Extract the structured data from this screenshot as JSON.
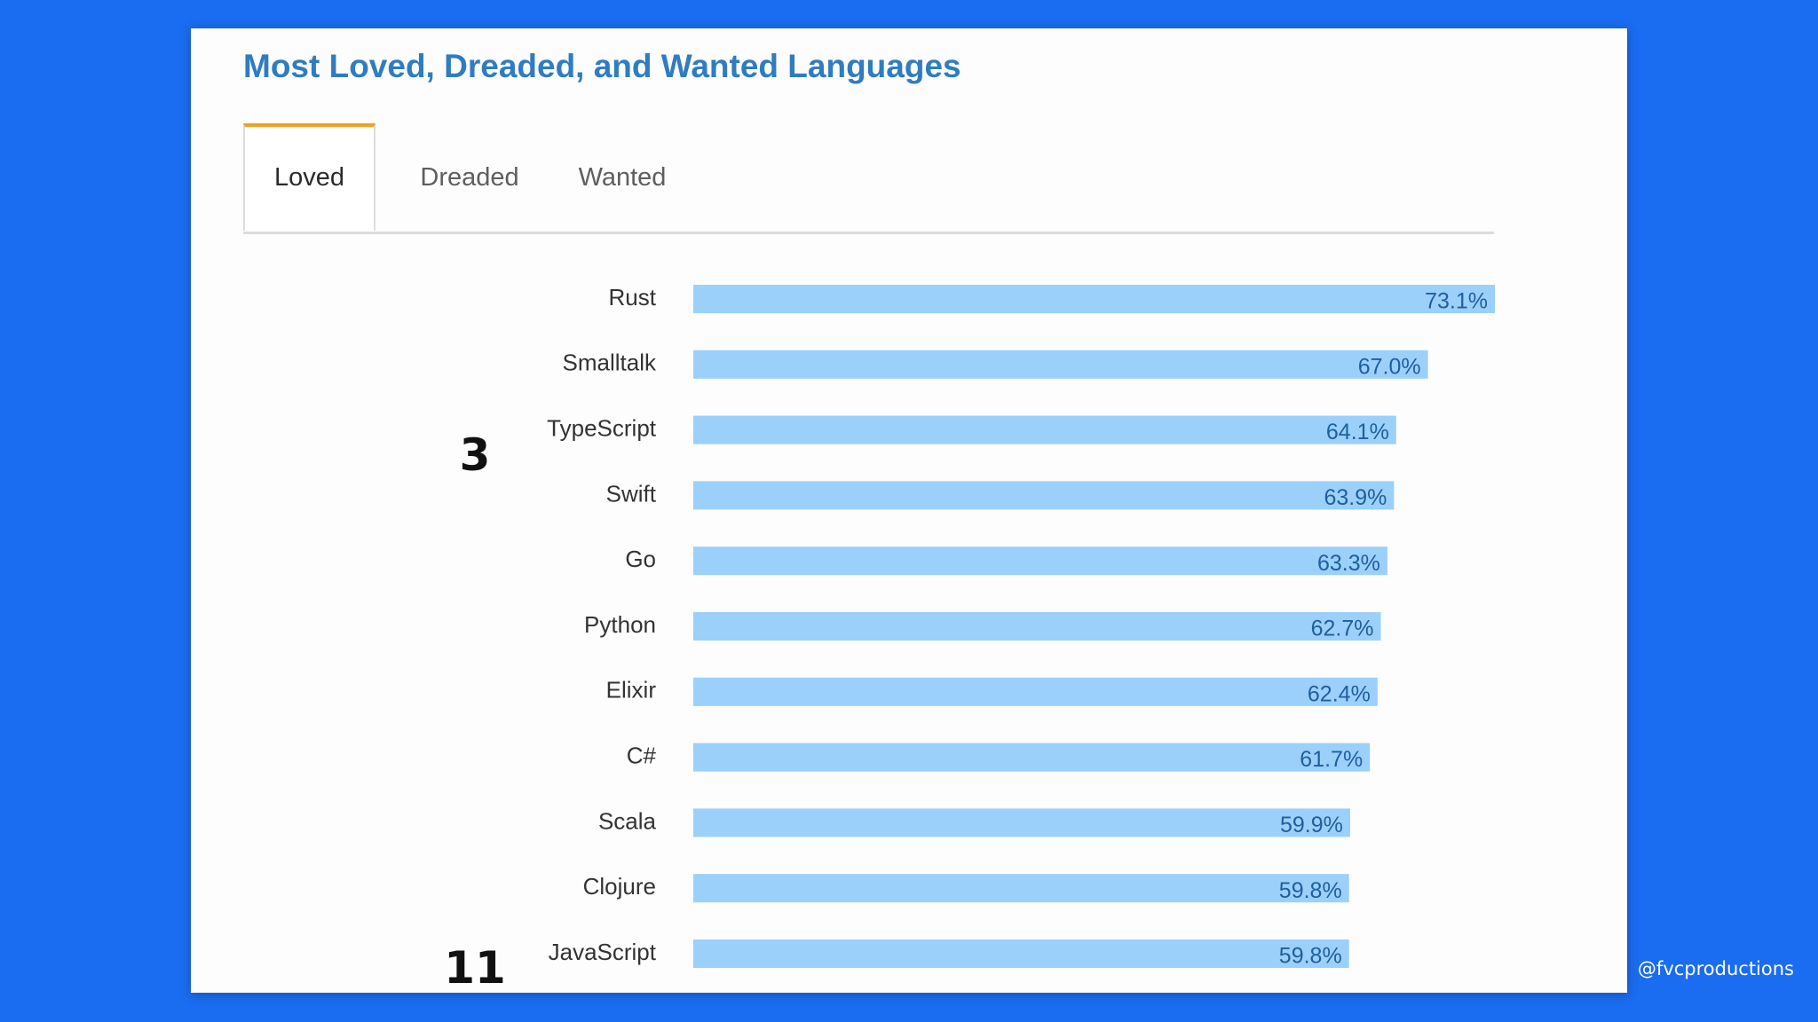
{
  "title": "Most Loved, Dreaded, and Wanted Languages",
  "tabs": [
    {
      "label": "Loved",
      "active": true
    },
    {
      "label": "Dreaded",
      "active": false
    },
    {
      "label": "Wanted",
      "active": false
    }
  ],
  "annotations": {
    "rank_typescript": "3",
    "rank_javascript": "11"
  },
  "watermark": "@fvcproductions",
  "colors": {
    "background": "#1a6cf0",
    "title": "#2f7cc1",
    "bar": "#9bd0fb",
    "bar_label": "#1f5f9e",
    "tab_accent": "#f0a024"
  },
  "chart_data": {
    "type": "bar",
    "orientation": "horizontal",
    "title": "Most Loved, Dreaded, and Wanted Languages",
    "categories": [
      "Rust",
      "Smalltalk",
      "TypeScript",
      "Swift",
      "Go",
      "Python",
      "Elixir",
      "C#",
      "Scala",
      "Clojure",
      "JavaScript"
    ],
    "values": [
      73.1,
      67.0,
      64.1,
      63.9,
      63.3,
      62.7,
      62.4,
      61.7,
      59.9,
      59.8,
      59.8
    ],
    "value_labels": [
      "73.1%",
      "67.0%",
      "64.1%",
      "63.9%",
      "63.3%",
      "62.7%",
      "62.4%",
      "61.7%",
      "59.9%",
      "59.8%",
      "59.8%"
    ],
    "xlim": [
      0,
      73.1
    ],
    "xlabel": "",
    "ylabel": "",
    "grid": false,
    "legend": "none"
  }
}
